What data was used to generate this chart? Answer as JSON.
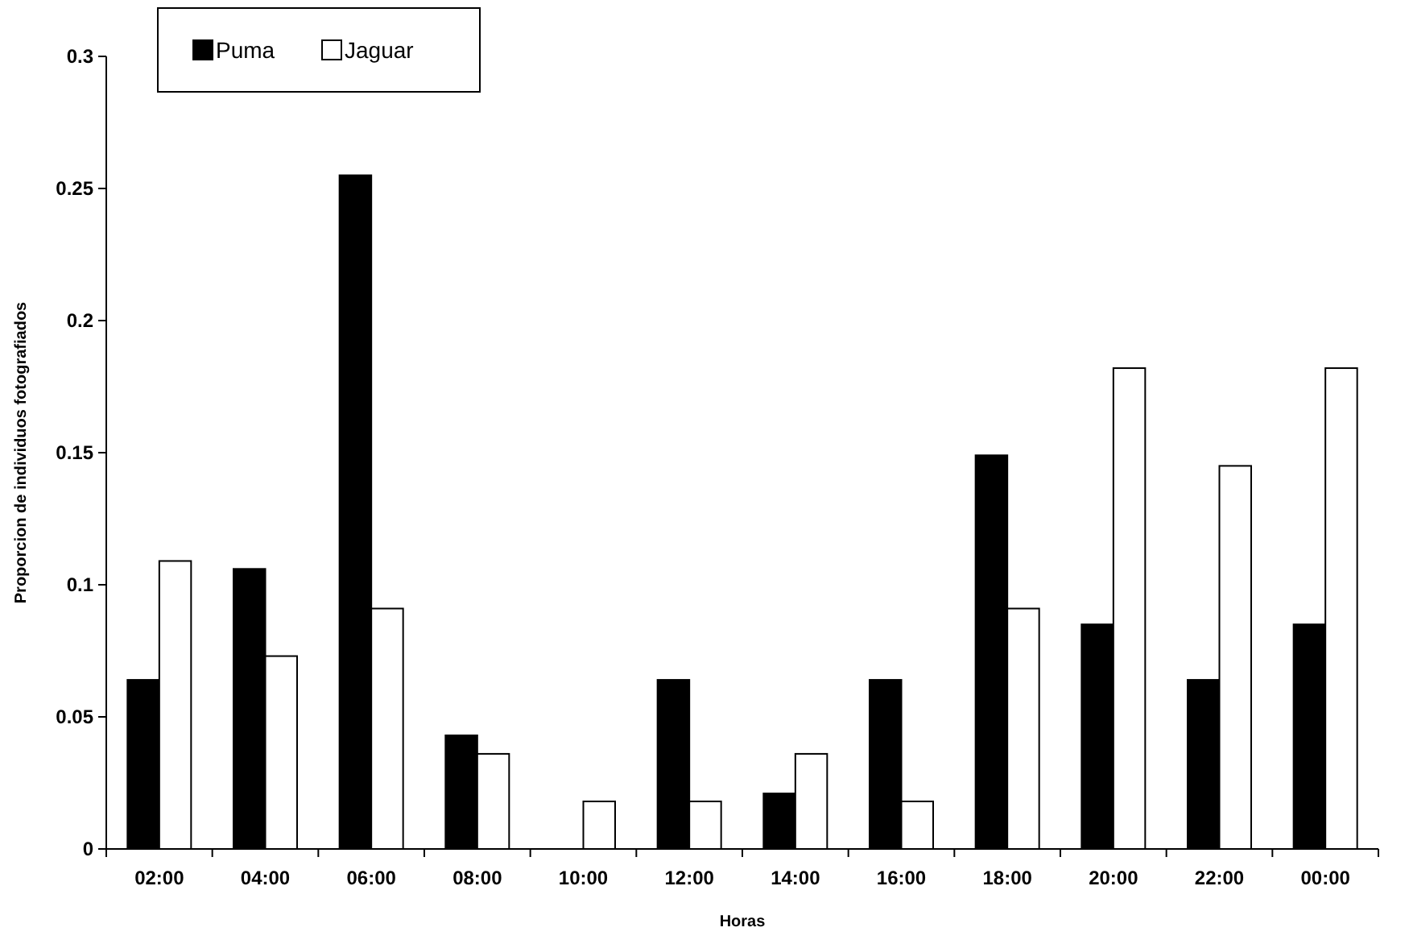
{
  "chart_data": {
    "type": "bar",
    "xlabel": "Horas",
    "ylabel": "Proporcion de individuos fotografiados",
    "categories": [
      "02:00",
      "04:00",
      "06:00",
      "08:00",
      "10:00",
      "12:00",
      "14:00",
      "16:00",
      "18:00",
      "20:00",
      "22:00",
      "00:00"
    ],
    "series": [
      {
        "name": "Puma",
        "color": "#000000",
        "values": [
          0.064,
          0.106,
          0.255,
          0.043,
          0,
          0.064,
          0.021,
          0.064,
          0.149,
          0.085,
          0.064,
          0.085
        ]
      },
      {
        "name": "Jaguar",
        "color": "#ffffff",
        "values": [
          0.109,
          0.073,
          0.091,
          0.036,
          0.018,
          0.018,
          0.036,
          0.018,
          0.091,
          0.182,
          0.145,
          0.182
        ]
      }
    ],
    "ylim": [
      0,
      0.3
    ],
    "yticks": [
      0,
      0.05,
      0.1,
      0.15,
      0.2,
      0.25,
      0.3
    ],
    "legend": "top left",
    "grid": false
  }
}
